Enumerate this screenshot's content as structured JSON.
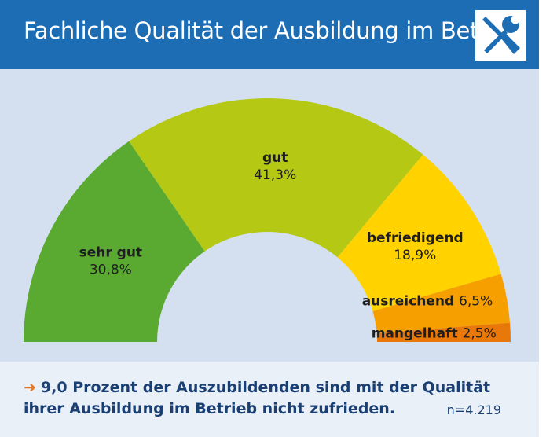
{
  "header": {
    "title": "Fachliche Qualität der Ausbildung im Betrieb",
    "icon": "wrench-screwdriver-icon",
    "background_color": "#1d6db5"
  },
  "chart_data": {
    "type": "pie",
    "subtype": "semicircle-donut",
    "categories": [
      "sehr gut",
      "gut",
      "befriedigend",
      "ausreichend",
      "mangelhaft"
    ],
    "values": [
      30.8,
      41.3,
      18.9,
      6.5,
      2.5
    ],
    "value_labels": [
      "30,8%",
      "41,3%",
      "18,9%",
      "6,5%",
      "2,5%"
    ],
    "colors": [
      "#5aaa32",
      "#b4c814",
      "#ffd200",
      "#f5a000",
      "#e8780a"
    ],
    "title": "Fachliche Qualität der Ausbildung im Betrieb",
    "legend": "none"
  },
  "footer": {
    "arrow": "➜",
    "note": "9,0 Prozent der Auszubildenden sind mit der Qualität ihrer Ausbildung im Betrieb nicht zufrieden.",
    "sample": "n=4.219"
  }
}
